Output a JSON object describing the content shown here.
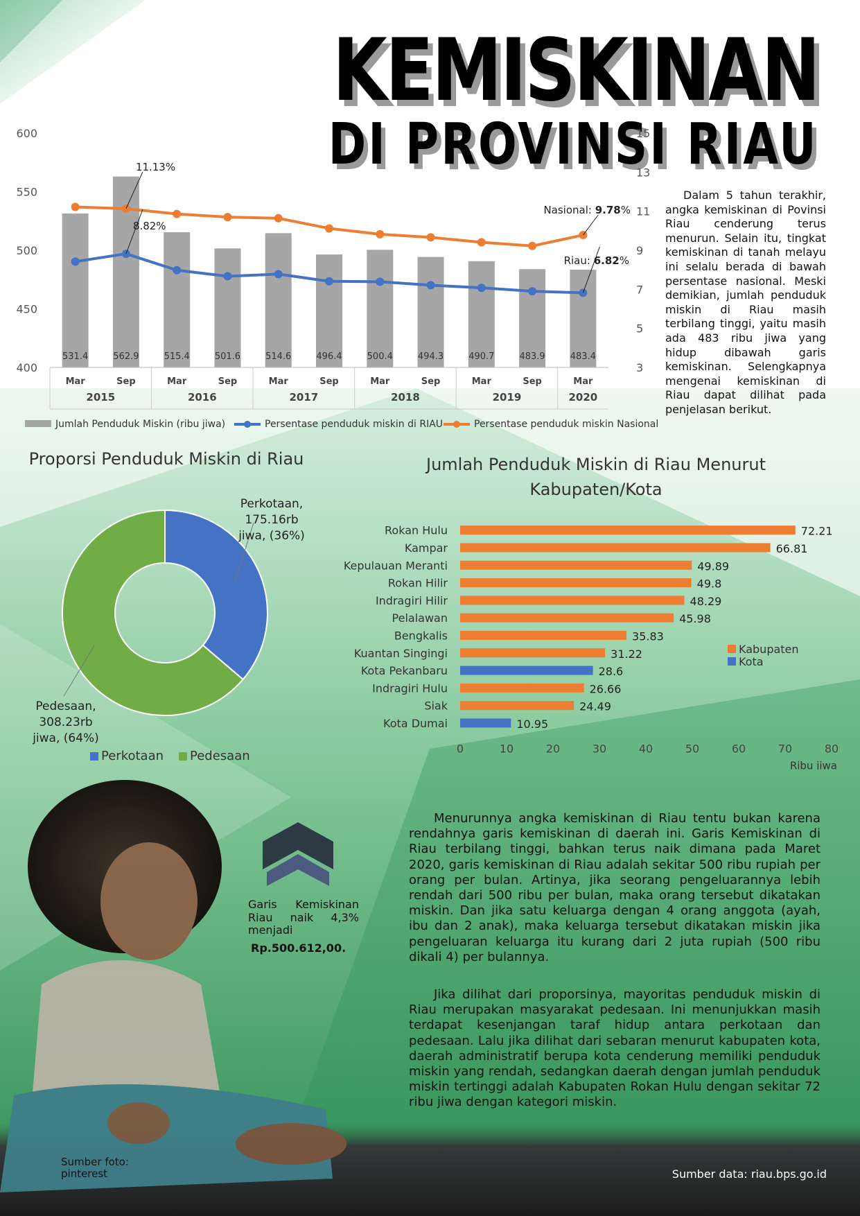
{
  "colors": {
    "bar": "#a6a6a6",
    "riau": "#4472c4",
    "nasional": "#ed7d31",
    "urban": "#4472c4",
    "rural": "#70ad47",
    "kab": "#ed7d31",
    "kota": "#4472c4"
  },
  "header": {
    "title": "KEMISKINAN",
    "subtitle": "DI PROVINSI RIAU"
  },
  "intro_text": "Dalam 5 tahun terakhir, angka kemiskinan di Povinsi Riau cenderung terus menurun. Selain itu, tingkat kemiskinan di tanah melayu ini selalu berada di bawah persentase nasional. Meski demikian, jumlah penduduk miskin di Riau masih terbilang tinggi, yaitu masih ada 483 ribu jiwa yang hidup dibawah garis kemiskinan. Selengkapnya mengenai kemiskinan di Riau dapat dilihat pada penjelasan berikut.",
  "chart_data": [
    {
      "type": "bar",
      "categories": [
        "Mar 2015",
        "Sep 2015",
        "Mar 2016",
        "Sep 2016",
        "Mar 2017",
        "Sep 2017",
        "Mar 2018",
        "Sep 2018",
        "Mar 2019",
        "Sep 2019",
        "Mar 2020"
      ],
      "period_labels": [
        "Mar",
        "Sep",
        "Mar",
        "Sep",
        "Mar",
        "Sep",
        "Mar",
        "Sep",
        "Mar",
        "Sep",
        "Mar"
      ],
      "year_labels": [
        "2015",
        "2016",
        "2017",
        "2018",
        "2019",
        "2020"
      ],
      "series": [
        {
          "name": "Jumlah Penduduk Miskin (ribu jiwa)",
          "type": "bar",
          "axis": "left",
          "values": [
            531.4,
            562.9,
            515.4,
            501.6,
            514.6,
            496.4,
            500.4,
            494.3,
            490.7,
            483.9,
            483.4
          ],
          "labels": [
            "531.4",
            "562.9",
            "515.4",
            "501.6",
            "514.6",
            "496.4",
            "500.4",
            "494.3",
            "490.7",
            "483.9",
            "483.4"
          ]
        },
        {
          "name": "Persentase penduduk miskin di RIAU",
          "type": "line",
          "axis": "right",
          "values": [
            8.42,
            8.82,
            7.98,
            7.67,
            7.78,
            7.41,
            7.39,
            7.21,
            7.08,
            6.9,
            6.82
          ]
        },
        {
          "name": "Persentase penduduk miskin Nasional",
          "type": "line",
          "axis": "right",
          "values": [
            11.22,
            11.13,
            10.86,
            10.7,
            10.64,
            10.12,
            9.82,
            9.66,
            9.41,
            9.22,
            9.78
          ]
        }
      ],
      "ylim": [
        400,
        600
      ],
      "y_ticks": [
        "400",
        "450",
        "500",
        "550",
        "600"
      ],
      "y2lim": [
        3,
        15
      ],
      "y2_ticks": [
        "3",
        "5",
        "7",
        "9",
        "11",
        "13",
        "15"
      ],
      "annotations": {
        "riau_peak": "8.82%",
        "nasional_peak": "11.13%",
        "nasional_last_prefix": "Nasional: ",
        "nasional_last_value": "9.78",
        "riau_last_prefix": "Riau: ",
        "riau_last_value": "6.82",
        "pct": "%"
      },
      "legend": "bottom"
    },
    {
      "type": "pie",
      "title": "Proporsi Penduduk Miskin di Riau",
      "slices": [
        {
          "name": "Perkotaan",
          "value": 175.16,
          "label_lines": [
            "Perkotaan,",
            "175.16rb",
            "jiwa, (36%)"
          ]
        },
        {
          "name": "Pedesaan",
          "value": 308.23,
          "label_lines": [
            "Pedesaan,",
            "308.23rb",
            "jiwa, (64%)"
          ]
        }
      ],
      "legend": "bottom"
    },
    {
      "type": "bar",
      "orientation": "horizontal",
      "title_lines": [
        "Jumlah Penduduk Miskin di Riau Menurut",
        "Kabupaten/Kota"
      ],
      "categories": [
        "Rokan Hulu",
        "Kampar",
        "Kepulauan Meranti",
        "Rokan Hilir",
        "Indragiri Hilir",
        "Pelalawan",
        "Bengkalis",
        "Kuantan Singingi",
        "Kota Pekanbaru",
        "Indragiri Hulu",
        "Siak",
        "Kota Dumai"
      ],
      "values": [
        72.21,
        66.81,
        49.89,
        49.8,
        48.29,
        45.98,
        35.83,
        31.22,
        28.6,
        26.66,
        24.49,
        10.95
      ],
      "value_labels": [
        "72.21",
        "66.81",
        "49.89",
        "49.8",
        "48.29",
        "45.98",
        "35.83",
        "31.22",
        "28.6",
        "26.66",
        "24.49",
        "10.95"
      ],
      "group": [
        "Kabupaten",
        "Kabupaten",
        "Kabupaten",
        "Kabupaten",
        "Kabupaten",
        "Kabupaten",
        "Kabupaten",
        "Kabupaten",
        "Kota",
        "Kabupaten",
        "Kabupaten",
        "Kota"
      ],
      "legend_entries": [
        "Kabupaten",
        "Kota"
      ],
      "xlim": [
        0,
        80
      ],
      "x_ticks": [
        "0",
        "10",
        "20",
        "30",
        "40",
        "50",
        "60",
        "70",
        "80"
      ],
      "xlabel": "Ribu jiwa"
    }
  ],
  "garis_kemiskinan": {
    "label": "Garis Kemiskinan Riau naik 4,3% menjadi",
    "value": "Rp.500.612,00."
  },
  "body_text_1": "Menurunnya angka kemiskinan di Riau tentu bukan karena rendahnya garis kemiskinan di daerah ini. Garis Kemiskinan di Riau terbilang tinggi, bahkan terus naik dimana pada Maret 2020, garis kemiskinan di Riau adalah sekitar 500 ribu rupiah per orang per bulan. Artinya, jika seorang pengeluarannya lebih rendah dari 500 ribu per bulan, maka orang tersebut dikatakan miskin. Dan jika satu keluarga dengan 4 orang anggota (ayah, ibu dan 2 anak), maka keluarga tersebut dikatakan miskin jika pengeluaran keluarga itu kurang dari 2 juta rupiah (500 ribu dikali 4) per bulannya.",
  "body_text_2": "Jika dilihat dari proporsinya, mayoritas penduduk miskin di Riau merupakan masyarakat pedesaan. Ini menunjukkan masih terdapat kesenjangan taraf hidup antara perkotaan dan pedesaan. Lalu jika dilihat dari sebaran menurut kabupaten kota, daerah administratif berupa kota cenderung memiliki penduduk miskin yang rendah, sedangkan daerah dengan jumlah penduduk miskin tertinggi adalah Kabupaten Rokan Hulu dengan sekitar 72 ribu jiwa dengan kategori miskin.",
  "credits": {
    "photo": "Sumber foto: pinterest",
    "data": "Sumber data: riau.bps.go.id"
  }
}
